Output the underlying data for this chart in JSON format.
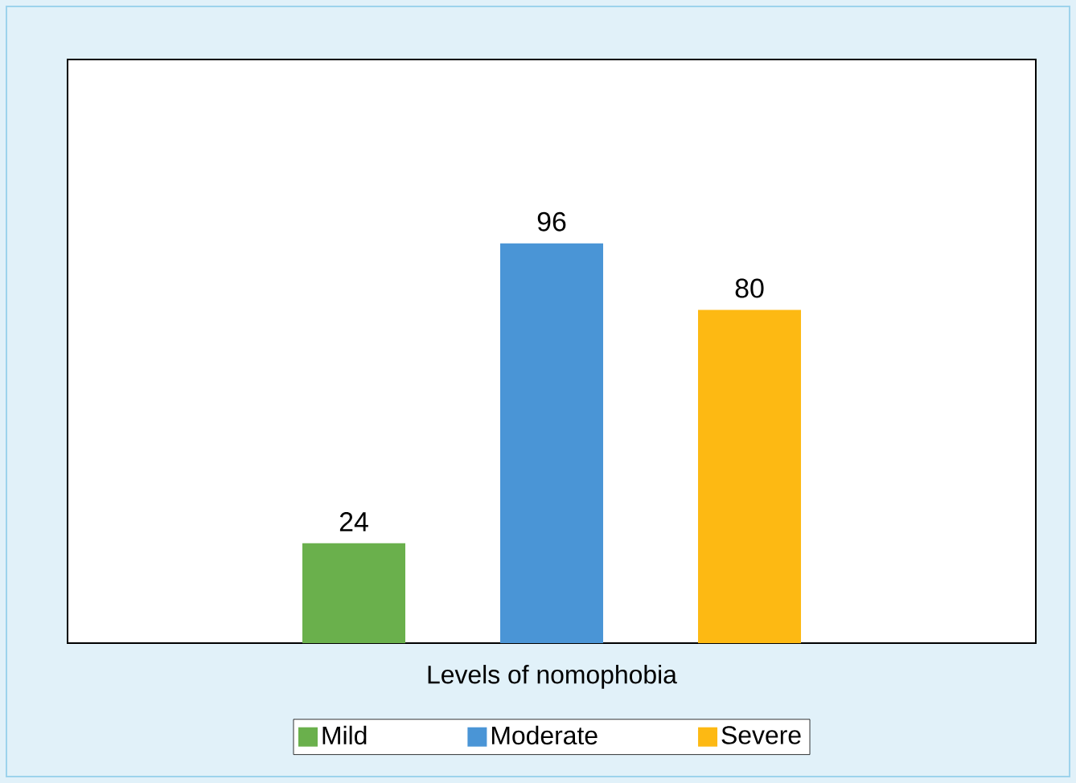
{
  "chart_data": {
    "type": "bar",
    "xlabel": "Levels of nomophobia",
    "categories": [
      "Mild",
      "Moderate",
      "Severe"
    ],
    "values": [
      24,
      96,
      80
    ],
    "colors": [
      "#6ab04c",
      "#4a95d6",
      "#fdb913"
    ],
    "data_labels": true
  }
}
